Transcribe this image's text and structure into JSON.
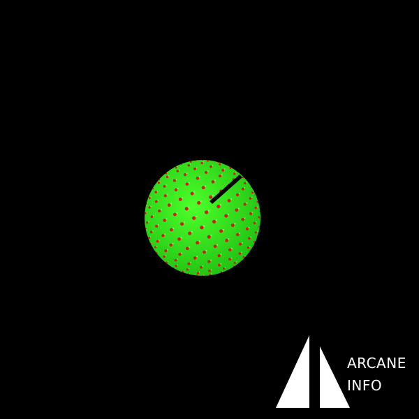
{
  "scene": {
    "background_color": "#000000",
    "object": "phyllotaxis-sphere",
    "sphere_fill_color": "#33e61a",
    "dot_color": "#d11a12",
    "highlight_color": "#9cff66"
  },
  "logo": {
    "line1": "ARCANE",
    "line2": "INFO",
    "mark_color": "#ffffff"
  }
}
